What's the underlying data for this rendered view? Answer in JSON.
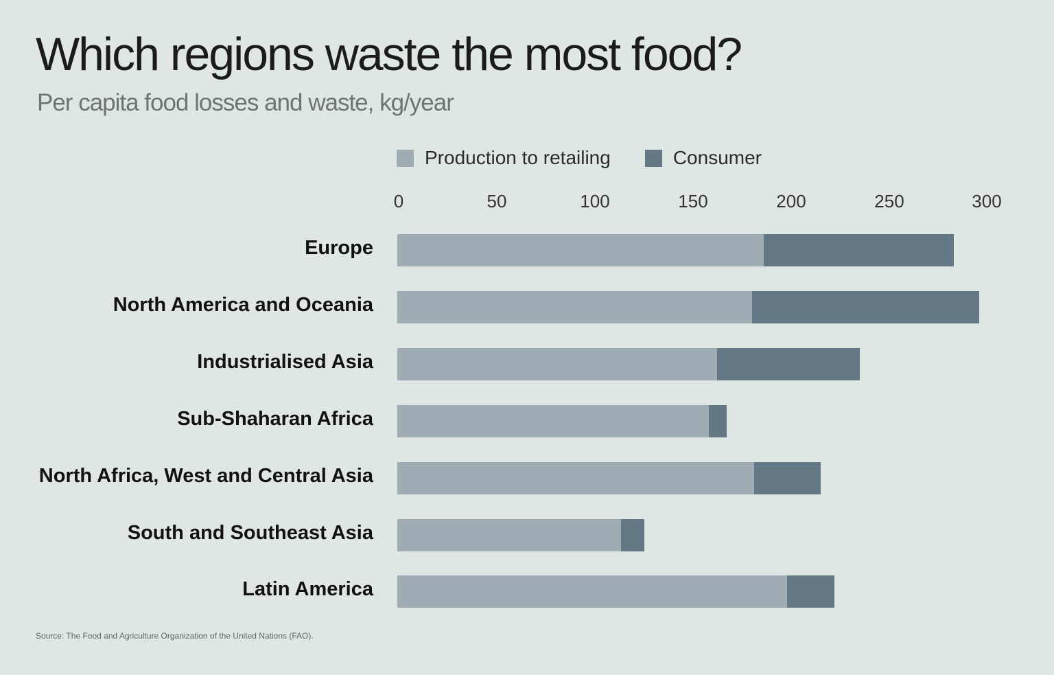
{
  "header": {
    "title": "Which regions waste the most food?",
    "subtitle": "Per capita food losses and waste, kg/year"
  },
  "legend": [
    {
      "label": "Production to retailing",
      "color": "#a0acb4"
    },
    {
      "label": "Consumer",
      "color": "#647985"
    }
  ],
  "axis": {
    "ticks": [
      "0",
      "50",
      "100",
      "150",
      "200",
      "250",
      "300"
    ]
  },
  "regions": [
    {
      "label": "Europe"
    },
    {
      "label": "North America and Oceania"
    },
    {
      "label": "Industrialised Asia"
    },
    {
      "label": "Sub-Shaharan Africa"
    },
    {
      "label": "North Africa, West and Central Asia"
    },
    {
      "label": "South and Southeast Asia"
    },
    {
      "label": "Latin America"
    }
  ],
  "footer": {
    "source": "Source: The Food and Agriculture Organization of the United Nations (FAO)."
  },
  "chart_data": {
    "type": "bar",
    "orientation": "horizontal",
    "stacked": true,
    "title": "Which regions waste the most food?",
    "subtitle": "Per capita food losses and waste, kg/year",
    "xlabel": "kg/year",
    "ylabel": "",
    "xlim": [
      0,
      300
    ],
    "x_ticks": [
      0,
      50,
      100,
      150,
      200,
      250,
      300
    ],
    "grid": false,
    "legend_position": "top",
    "categories": [
      "Europe",
      "North America and Oceania",
      "Industrialised Asia",
      "Sub-Shaharan Africa",
      "North Africa, West and Central Asia",
      "South and Southeast Asia",
      "Latin America"
    ],
    "series": [
      {
        "name": "Production to retailing",
        "color": "#a0acb4",
        "values": [
          187,
          181,
          163,
          159,
          182,
          114,
          199
        ]
      },
      {
        "name": "Consumer",
        "color": "#647985",
        "values": [
          97,
          116,
          73,
          9,
          34,
          12,
          24
        ]
      }
    ],
    "source": "Source: The Food and Agriculture Organization of the United Nations (FAO)."
  }
}
